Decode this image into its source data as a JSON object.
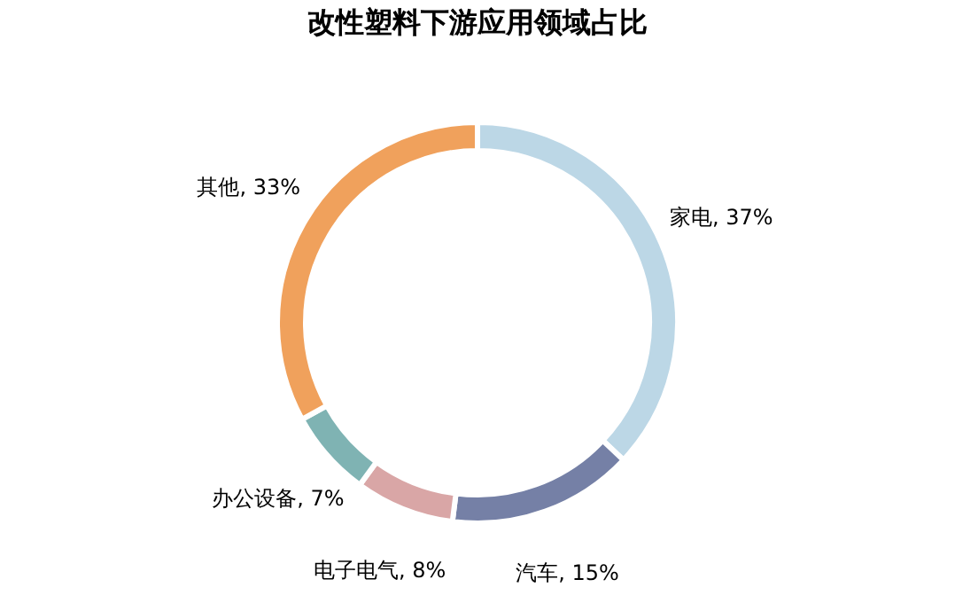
{
  "chart_data": {
    "type": "donut",
    "title": "改性塑料下游应用领域占比",
    "categories": [
      "家电",
      "汽车",
      "电子电气",
      "办公设备",
      "其他"
    ],
    "values": [
      37,
      15,
      8,
      7,
      33
    ],
    "colors": [
      "#bcd7e6",
      "#7580a6",
      "#d9a6a6",
      "#7fb3b3",
      "#f0a15c"
    ],
    "value_labels": [
      "37%",
      "15%",
      "8%",
      "7%",
      "33%"
    ],
    "legend": false
  }
}
